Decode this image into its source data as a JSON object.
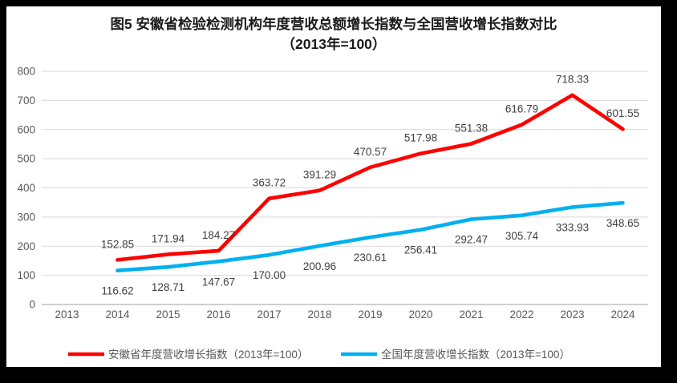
{
  "title": {
    "line1": "图5  安徽省检验检测机构年度营收总额增长指数与全国营收增长指数对比",
    "line2": "（2013年=100）"
  },
  "chart_data": {
    "type": "line",
    "categories": [
      "2013",
      "2014",
      "2015",
      "2016",
      "2017",
      "2018",
      "2019",
      "2020",
      "2021",
      "2022",
      "2023",
      "2024"
    ],
    "series": [
      {
        "name": "安徽省年度营收增长指数（2013年=100）",
        "color": "#FF0000",
        "label_position": "above",
        "values": [
          null,
          "152.85",
          "171.94",
          "184.27",
          "363.72",
          "391.29",
          "470.57",
          "517.98",
          "551.38",
          "616.79",
          "718.33",
          "601.55"
        ]
      },
      {
        "name": "全国年度营收增长指数（2013年=100）",
        "color": "#00B0F0",
        "label_position": "below",
        "values": [
          null,
          "116.62",
          "128.71",
          "147.67",
          "170.00",
          "200.96",
          "230.61",
          "256.41",
          "292.47",
          "305.74",
          "333.93",
          "348.65"
        ]
      }
    ],
    "ylim": [
      0,
      800
    ],
    "ytick_step": 100,
    "yticks": [
      "0",
      "100",
      "200",
      "300",
      "400",
      "500",
      "600",
      "700",
      "800"
    ],
    "grid": true,
    "data_labels": true,
    "legend_position": "bottom"
  },
  "style": {
    "frame_border": "#000000",
    "background": "#ffffff",
    "grid_color": "#d9d9d9",
    "axis_color": "#bfbfbf",
    "tick_label_color": "#595959",
    "data_label_color": "#404040",
    "legend_text_color": "#595959",
    "series_red": "#FF0000",
    "series_blue": "#00B0F0"
  }
}
